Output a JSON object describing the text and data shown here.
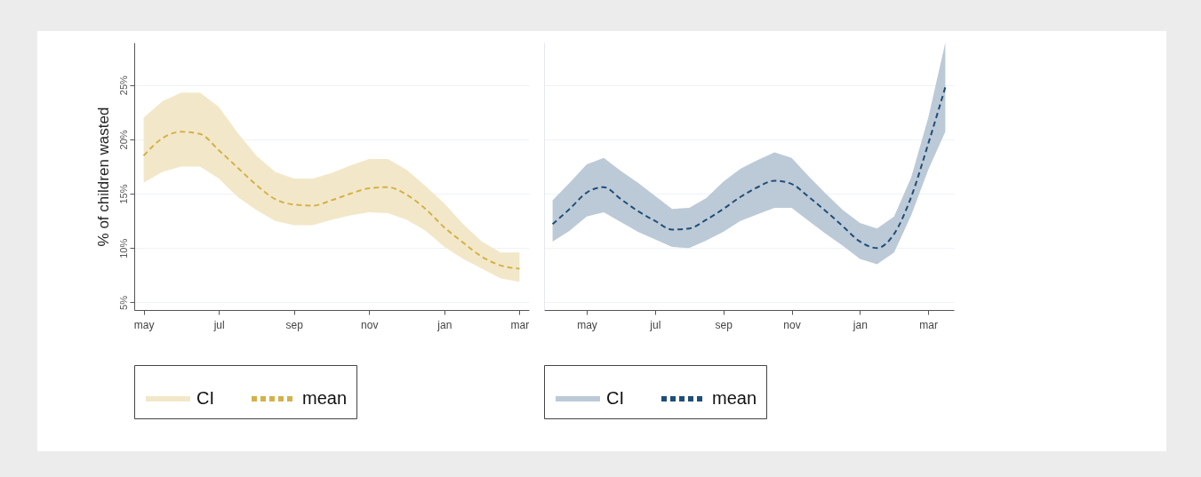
{
  "chart_data": [
    {
      "type": "line",
      "ylabel": "% of children wasted",
      "annotations": [
        "CI"
      ],
      "categories": [
        "may",
        null,
        null,
        null,
        "jul",
        null,
        null,
        null,
        "sep",
        null,
        null,
        null,
        "nov",
        null,
        null,
        null,
        "jan",
        null,
        null,
        null,
        "mar"
      ],
      "series": [
        {
          "name": "mean",
          "color": "#d4b14a",
          "line_style": "dashed",
          "values": [
            18.5,
            20.1,
            20.7,
            20.5,
            19.0,
            17.4,
            15.8,
            14.5,
            14.0,
            13.9,
            14.4,
            15.0,
            15.5,
            15.6,
            14.9,
            13.6,
            11.9,
            10.5,
            9.2,
            8.4,
            8.1
          ],
          "lower": [
            16.0,
            17.0,
            17.5,
            17.5,
            16.4,
            14.7,
            13.5,
            12.5,
            12.1,
            12.1,
            12.6,
            13.0,
            13.3,
            13.2,
            12.6,
            11.6,
            10.1,
            9.0,
            8.1,
            7.2,
            6.9
          ],
          "upper": [
            22.0,
            23.5,
            24.3,
            24.3,
            23.0,
            20.6,
            18.5,
            17.0,
            16.4,
            16.4,
            16.9,
            17.6,
            18.2,
            18.2,
            17.2,
            15.7,
            14.1,
            12.2,
            10.6,
            9.6,
            9.6
          ]
        }
      ],
      "ylim": [
        4.3,
        28.9
      ],
      "yticks": [
        {
          "value": 5,
          "label": "5%"
        },
        {
          "value": 10,
          "label": "10%"
        },
        {
          "value": 15,
          "label": "15%"
        },
        {
          "value": 20,
          "label": "20%"
        },
        {
          "value": 25,
          "label": "25%"
        }
      ],
      "grid": "y",
      "legend": "bottom"
    },
    {
      "type": "line",
      "annotations": [
        "CI"
      ],
      "categories": [
        null,
        null,
        "may",
        null,
        null,
        null,
        "jul",
        null,
        null,
        null,
        "sep",
        null,
        null,
        null,
        "nov",
        null,
        null,
        null,
        "jan",
        null,
        null,
        null,
        "mar",
        null
      ],
      "series": [
        {
          "name": "mean",
          "color": "#1f4e79",
          "line_style": "dashed",
          "values": [
            12.2,
            13.6,
            15.1,
            15.6,
            14.5,
            13.4,
            12.5,
            11.7,
            11.8,
            12.6,
            13.6,
            14.7,
            15.6,
            16.2,
            15.9,
            14.7,
            13.4,
            12.0,
            10.6,
            10.0,
            11.3,
            14.7,
            19.6,
            24.8
          ],
          "lower": [
            10.6,
            11.6,
            12.9,
            13.3,
            12.4,
            11.5,
            10.8,
            10.1,
            10.0,
            10.7,
            11.5,
            12.5,
            13.1,
            13.7,
            13.7,
            12.5,
            11.3,
            10.2,
            9.0,
            8.5,
            9.6,
            13.0,
            17.2,
            20.7
          ],
          "upper": [
            14.4,
            16.0,
            17.7,
            18.3,
            17.1,
            16.0,
            14.8,
            13.6,
            13.7,
            14.6,
            16.1,
            17.3,
            18.1,
            18.8,
            18.3,
            16.6,
            15.0,
            13.5,
            12.3,
            11.8,
            12.9,
            16.5,
            22.0,
            28.9
          ]
        }
      ],
      "ylim": [
        4.3,
        28.9
      ],
      "yticks": [
        5,
        10,
        15,
        20,
        25
      ],
      "tick_labels": "x",
      "grid": "y",
      "legend": "bottom"
    }
  ]
}
